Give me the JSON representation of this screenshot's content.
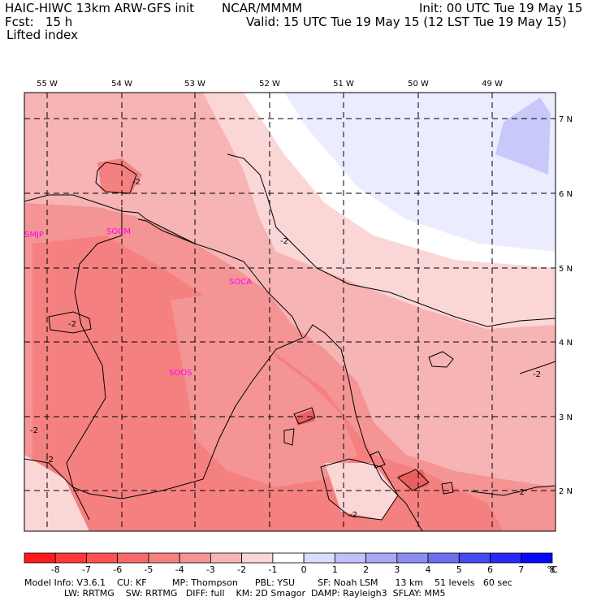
{
  "header": {
    "model": "HAIC-HIWC 13km ARW-GFS init",
    "org": "NCAR/MMMM",
    "init": "Init: 00 UTC Tue 19 May 15",
    "fcst": "Fcst:   15 h",
    "valid": "Valid: 15 UTC Tue 19 May 15 (12 LST Tue 19 May 15)",
    "field": "Lifted index"
  },
  "map": {
    "lon_labels": [
      "55 W",
      "54 W",
      "53 W",
      "52 W",
      "51 W",
      "50 W",
      "49 W"
    ],
    "lat_labels": [
      "7 N",
      "6 N",
      "5 N",
      "4 N",
      "3 N",
      "2 N"
    ],
    "stations": [
      "SMJP",
      "SOCM",
      "SOCA",
      "SOOS"
    ],
    "contour_labels": [
      "-2",
      "-2",
      "-2",
      "-2",
      "-2",
      "-2",
      "-2",
      "-2"
    ]
  },
  "colorbar": {
    "ticks": [
      "-8",
      "-7",
      "-6",
      "-5",
      "-4",
      "-3",
      "-2",
      "-1",
      "0",
      "1",
      "2",
      "3",
      "4",
      "5",
      "6",
      "7",
      "8"
    ],
    "unit": "°C",
    "colors": [
      "#ff1a1a",
      "#ff3838",
      "#fe5252",
      "#f96a6a",
      "#f58080",
      "#f49494",
      "#f6b4b4",
      "#fbd6d6",
      "#ffffff",
      "#dcdcff",
      "#c0c0fa",
      "#a8a8f6",
      "#8c8cf2",
      "#6e6ef0",
      "#4848f0",
      "#2828f8",
      "#0808ff"
    ]
  },
  "footer": {
    "line1": "Model Info: V3.6.1    CU: KF         MP: Thompson      PBL: YSU        SF: Noah LSM      13 km    51 levels   60 sec",
    "line2": "              LW: RRTMG    SW: RRTMG   DIFF: full    KM: 2D Smagor  DAMP: Rayleigh3  SFLAY: MM5"
  }
}
